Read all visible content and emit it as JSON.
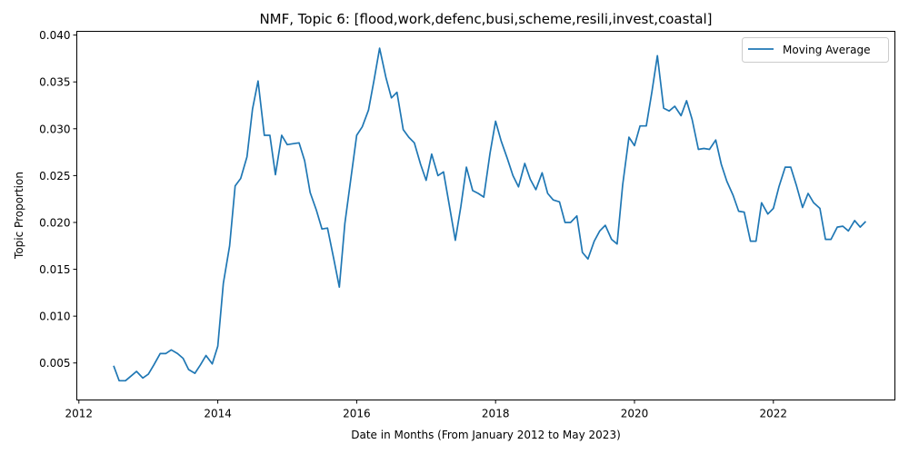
{
  "chart_data": {
    "type": "line",
    "title": "NMF, Topic 6: [flood,work,defenc,busi,scheme,resili,invest,coastal]",
    "xlabel": "Date in Months (From January 2012 to May 2023)",
    "ylabel": "Topic Proportion",
    "xlim": [
      2011.97,
      2023.75
    ],
    "ylim": [
      0.00105,
      0.0404
    ],
    "xticks": [
      2012,
      2014,
      2016,
      2018,
      2020,
      2022
    ],
    "yticks": [
      0.005,
      0.01,
      0.015,
      0.02,
      0.025,
      0.03,
      0.035,
      0.04
    ],
    "ytick_labels": [
      "0.005",
      "0.010",
      "0.015",
      "0.020",
      "0.025",
      "0.030",
      "0.035",
      "0.040"
    ],
    "grid": false,
    "legend_position": "top-right",
    "color": "#1f77b4",
    "series": [
      {
        "name": "Moving Average",
        "x": [
          2012.5,
          2012.58,
          2012.67,
          2012.75,
          2012.83,
          2012.92,
          2013.0,
          2013.08,
          2013.17,
          2013.25,
          2013.33,
          2013.42,
          2013.5,
          2013.58,
          2013.67,
          2013.75,
          2013.83,
          2013.92,
          2014.0,
          2014.08,
          2014.17,
          2014.25,
          2014.33,
          2014.42,
          2014.5,
          2014.58,
          2014.67,
          2014.75,
          2014.83,
          2014.92,
          2015.0,
          2015.08,
          2015.17,
          2015.25,
          2015.33,
          2015.42,
          2015.5,
          2015.58,
          2015.67,
          2015.75,
          2015.83,
          2015.92,
          2016.0,
          2016.08,
          2016.17,
          2016.25,
          2016.33,
          2016.42,
          2016.5,
          2016.58,
          2016.67,
          2016.75,
          2016.83,
          2016.92,
          2017.0,
          2017.08,
          2017.17,
          2017.25,
          2017.33,
          2017.42,
          2017.5,
          2017.58,
          2017.67,
          2017.75,
          2017.83,
          2017.92,
          2018.0,
          2018.08,
          2018.17,
          2018.25,
          2018.33,
          2018.42,
          2018.5,
          2018.58,
          2018.67,
          2018.75,
          2018.83,
          2018.92,
          2019.0,
          2019.08,
          2019.17,
          2019.25,
          2019.33,
          2019.42,
          2019.5,
          2019.58,
          2019.67,
          2019.75,
          2019.83,
          2019.92,
          2020.0,
          2020.08,
          2020.17,
          2020.25,
          2020.33,
          2020.42,
          2020.5,
          2020.58,
          2020.67,
          2020.75,
          2020.83,
          2020.92,
          2021.0,
          2021.08,
          2021.17,
          2021.25,
          2021.33,
          2021.42,
          2021.5,
          2021.58,
          2021.67,
          2021.75,
          2021.83,
          2021.92,
          2022.0,
          2022.08,
          2022.17,
          2022.25,
          2022.33,
          2022.42,
          2022.5,
          2022.58,
          2022.67,
          2022.75,
          2022.83,
          2022.92,
          2023.0,
          2023.08,
          2023.17,
          2023.25,
          2023.33
        ],
        "values": [
          0.0047,
          0.0031,
          0.0031,
          0.0036,
          0.0041,
          0.0034,
          0.0038,
          0.0048,
          0.006,
          0.006,
          0.0064,
          0.006,
          0.0055,
          0.0043,
          0.0039,
          0.0048,
          0.0058,
          0.0049,
          0.0068,
          0.0135,
          0.0175,
          0.0239,
          0.0247,
          0.027,
          0.0321,
          0.0351,
          0.0293,
          0.0293,
          0.0251,
          0.0293,
          0.0283,
          0.0284,
          0.0285,
          0.0266,
          0.0232,
          0.0213,
          0.0193,
          0.0194,
          0.0161,
          0.0131,
          0.0199,
          0.0249,
          0.0293,
          0.0302,
          0.032,
          0.0352,
          0.0386,
          0.0355,
          0.0333,
          0.0339,
          0.0299,
          0.0291,
          0.0285,
          0.0262,
          0.0245,
          0.0273,
          0.025,
          0.0254,
          0.022,
          0.0181,
          0.0217,
          0.0259,
          0.0234,
          0.0231,
          0.0227,
          0.0274,
          0.0308,
          0.0287,
          0.0268,
          0.025,
          0.0238,
          0.0263,
          0.0246,
          0.0235,
          0.0253,
          0.0231,
          0.0224,
          0.0222,
          0.02,
          0.02,
          0.0207,
          0.0168,
          0.0161,
          0.018,
          0.0191,
          0.0197,
          0.0182,
          0.0177,
          0.024,
          0.0291,
          0.0282,
          0.0303,
          0.0303,
          0.0339,
          0.0378,
          0.0322,
          0.0319,
          0.0324,
          0.0314,
          0.033,
          0.031,
          0.0278,
          0.0279,
          0.0278,
          0.0288,
          0.0262,
          0.0244,
          0.0229,
          0.0212,
          0.0211,
          0.018,
          0.018,
          0.0221,
          0.0209,
          0.0215,
          0.0238,
          0.0259,
          0.0259,
          0.024,
          0.0216,
          0.0231,
          0.0221,
          0.0215,
          0.0182,
          0.0182,
          0.0195,
          0.0196,
          0.0191,
          0.0202,
          0.0195,
          0.0201
        ]
      }
    ]
  }
}
